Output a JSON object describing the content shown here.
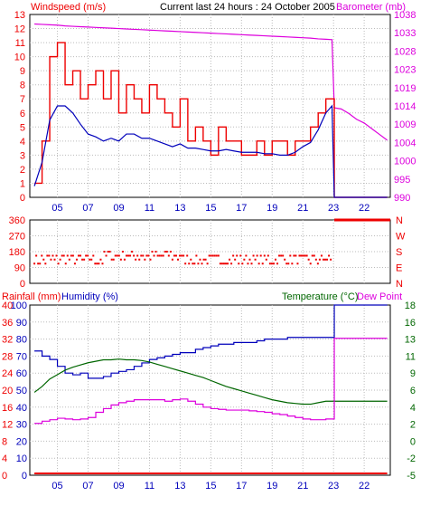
{
  "header": {
    "center": "Current last 24 hours : 24 October 2005",
    "left_title": "Windspeed (m/s)",
    "right_title": "Barometer (mb)"
  },
  "bottom_header": {
    "rainfall": "Rainfall (mm)",
    "humidity": "Humidity (%)",
    "temperature": "Temperature (°C)",
    "dewpoint": "Dew Point"
  },
  "colors": {
    "wind": "#ee0000",
    "avgwind": "#0000bb",
    "baro": "#dd00dd",
    "dir": "#ee0000",
    "hum": "#0000bb",
    "temp": "#006600",
    "dew": "#dd00dd",
    "rain": "#ee0000",
    "grid": "#bbbbbb",
    "frame": "#000000"
  },
  "chart_data": [
    {
      "type": "line",
      "panel": "wind",
      "x_ticks": [
        "05",
        "07",
        "09",
        "11",
        "13",
        "15",
        "17",
        "19",
        "21",
        "23",
        "22"
      ],
      "y_left_ticks": [
        "0",
        "1",
        "2",
        "3",
        "4",
        "5",
        "6",
        "7",
        "8",
        "9",
        "10",
        "11",
        "12",
        "13"
      ],
      "y_right_ticks": [
        "990",
        "995",
        "1000",
        "1004",
        "1009",
        "1014",
        "1019",
        "1023",
        "1028",
        "1033",
        "1038"
      ],
      "ylim_left": [
        0,
        13
      ],
      "ylim_right": [
        990,
        1038
      ],
      "hours": [
        3.5,
        4,
        4.5,
        5,
        5.5,
        6,
        6.5,
        7,
        7.5,
        8,
        8.5,
        9,
        9.5,
        10,
        10.5,
        11,
        11.5,
        12,
        12.5,
        13,
        13.5,
        14,
        14.5,
        15,
        15.5,
        16,
        16.5,
        17,
        17.5,
        18,
        18.5,
        19,
        19.5,
        20,
        20.5,
        21,
        21.5,
        22,
        22.5,
        22.9,
        23.05,
        23.5,
        24,
        24.5,
        25,
        25.5,
        26,
        26.5
      ],
      "series": [
        {
          "key": "gust",
          "values": [
            1,
            4,
            10,
            11,
            8,
            9,
            7,
            8,
            9,
            7,
            9,
            6,
            8,
            7,
            6,
            8,
            7,
            6,
            5,
            7,
            4,
            5,
            4,
            3,
            5,
            4,
            4,
            3,
            3,
            4,
            3,
            4,
            4,
            3,
            4,
            4,
            5,
            6,
            7,
            7,
            0,
            0,
            0,
            0,
            0,
            0,
            0,
            0
          ]
        },
        {
          "key": "average",
          "values": [
            0.8,
            2.5,
            5.5,
            6.5,
            6.5,
            6,
            5.2,
            4.5,
            4.3,
            4,
            4.2,
            4,
            4.5,
            4.5,
            4.2,
            4.2,
            4,
            3.8,
            3.6,
            3.8,
            3.5,
            3.5,
            3.4,
            3.3,
            3.3,
            3.4,
            3.3,
            3.2,
            3.2,
            3.2,
            3.1,
            3.1,
            3,
            3,
            3.2,
            3.6,
            3.9,
            4.8,
            6,
            6.5,
            0,
            0,
            0,
            0,
            0,
            0,
            0,
            0
          ]
        },
        {
          "key": "barometer",
          "values": [
            1035.5,
            1035.4,
            1035.3,
            1035.2,
            1035,
            1034.9,
            1034.8,
            1034.7,
            1034.6,
            1034.5,
            1034.4,
            1034.3,
            1034.2,
            1034.1,
            1034,
            1033.9,
            1033.8,
            1033.7,
            1033.6,
            1033.5,
            1033.4,
            1033.3,
            1033.2,
            1033.1,
            1033,
            1032.9,
            1032.8,
            1032.7,
            1032.6,
            1032.5,
            1032.4,
            1032.3,
            1032.2,
            1032.1,
            1032,
            1031.9,
            1031.8,
            1031.6,
            1031.5,
            1031.4,
            1013.5,
            1013.2,
            1012,
            1010.5,
            1009.5,
            1008,
            1006.5,
            1005
          ]
        }
      ]
    },
    {
      "type": "scatter",
      "panel": "wind-direction",
      "y_left_ticks": [
        "0",
        "90",
        "180",
        "270",
        "360"
      ],
      "y_right_ticks": [
        "N",
        "E",
        "S",
        "W",
        "N"
      ],
      "ylim": [
        0,
        360
      ],
      "series": [
        {
          "key": "direction-points",
          "values": "scattered between 90 and 200 degrees from 03h to 23h; constant 360 after 23h"
        }
      ]
    },
    {
      "type": "line",
      "panel": "humidity-temperature",
      "y_left_rain_ticks": [
        "0",
        "4",
        "8",
        "12",
        "16",
        "20",
        "24",
        "28",
        "32",
        "36",
        "40"
      ],
      "y_left_hum_ticks": [
        "0",
        "10",
        "20",
        "30",
        "40",
        "50",
        "60",
        "70",
        "80",
        "90",
        "100"
      ],
      "y_right_ticks": [
        "-5",
        "-2",
        "0",
        "2",
        "4",
        "6",
        "9",
        "11",
        "13",
        "16",
        "18"
      ],
      "ylim_humidity": [
        0,
        100
      ],
      "ylim_temperature": [
        -5,
        18
      ],
      "hours": [
        3.5,
        4,
        4.5,
        5,
        5.5,
        6,
        6.5,
        7,
        7.5,
        8,
        8.5,
        9,
        9.5,
        10,
        10.5,
        11,
        11.5,
        12,
        12.5,
        13,
        13.5,
        14,
        14.5,
        15,
        15.5,
        16,
        16.5,
        17,
        17.5,
        18,
        18.5,
        19,
        19.5,
        20,
        20.5,
        21,
        21.5,
        22,
        22.5,
        22.9,
        23.05,
        23.5,
        24,
        24.5,
        25,
        25.5,
        26,
        26.5
      ],
      "series": [
        {
          "key": "humidity",
          "values": [
            73,
            70,
            68,
            64,
            60,
            59,
            60,
            57,
            57,
            58,
            60,
            61,
            62,
            64,
            66,
            68,
            69,
            70,
            71,
            72,
            72,
            74,
            75,
            76,
            77,
            77,
            78,
            78,
            78,
            79,
            80,
            80,
            80,
            81,
            81,
            81,
            81,
            81,
            81,
            81,
            100,
            100,
            100,
            100,
            100,
            100,
            100,
            100
          ]
        },
        {
          "key": "temperature",
          "values": [
            6.2,
            7.0,
            8.0,
            8.6,
            9.2,
            9.6,
            9.9,
            10.2,
            10.4,
            10.6,
            10.6,
            10.7,
            10.6,
            10.6,
            10.5,
            10.3,
            10,
            9.7,
            9.4,
            9.1,
            8.8,
            8.5,
            8.2,
            7.8,
            7.4,
            7.0,
            6.7,
            6.4,
            6.1,
            5.8,
            5.5,
            5.2,
            5.0,
            4.8,
            4.7,
            4.6,
            4.6,
            4.8,
            5.0,
            5.0,
            5.0,
            5.0,
            5.0,
            5.0,
            5.0,
            5.0,
            5.0,
            5.0
          ]
        },
        {
          "key": "dewpoint",
          "values": [
            2.0,
            2.3,
            2.5,
            2.7,
            2.6,
            2.5,
            2.6,
            2.8,
            3.5,
            4.0,
            4.5,
            4.8,
            5.0,
            5.2,
            5.2,
            5.2,
            5.2,
            5.0,
            5.2,
            5.3,
            5.0,
            4.6,
            4.2,
            4.0,
            3.9,
            3.8,
            3.8,
            3.8,
            3.7,
            3.6,
            3.5,
            3.3,
            3.2,
            3.0,
            2.8,
            2.6,
            2.5,
            2.5,
            2.6,
            2.6,
            13.5,
            13.5,
            13.5,
            13.5,
            13.5,
            13.5,
            13.5,
            13.5
          ]
        },
        {
          "key": "rainfall",
          "values": [
            0,
            0,
            0,
            0,
            0,
            0,
            0,
            0,
            0,
            0,
            0,
            0,
            0,
            0,
            0,
            0,
            0,
            0,
            0,
            0,
            0,
            0,
            0,
            0,
            0,
            0,
            0,
            0,
            0,
            0,
            0,
            0,
            0,
            0,
            0,
            0,
            0,
            0,
            0,
            0,
            0,
            0,
            0,
            0,
            0,
            0,
            0,
            0
          ]
        }
      ]
    }
  ]
}
